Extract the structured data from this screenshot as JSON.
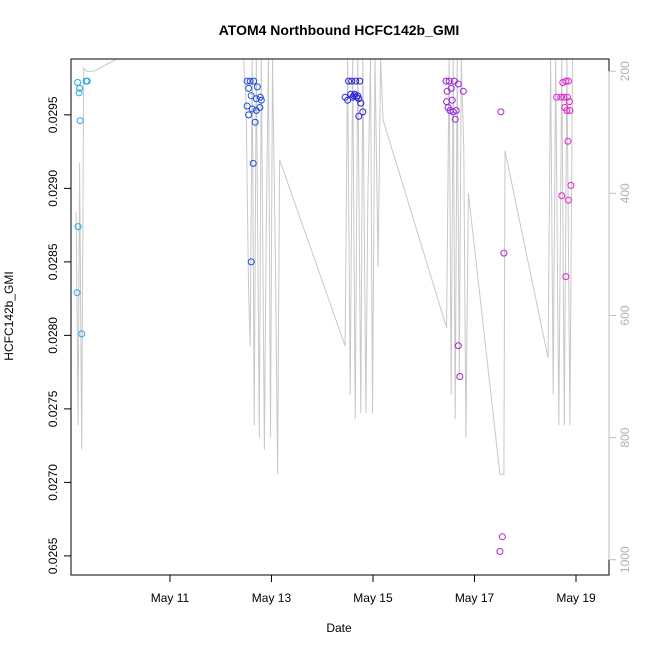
{
  "chart_data": {
    "type": "scatter",
    "title": "ATOM4 Northbound HCFC142b_GMI",
    "xlabel": "Date",
    "ylabel": "HCFC142b_GMI",
    "x_unit": "days since May 9",
    "xlim": [
      0.05,
      10.65
    ],
    "ylim": [
      0.02637,
      0.02988
    ],
    "y2lim": [
      1025,
      180
    ],
    "x_ticks": [
      {
        "value": 2,
        "label": "May 11"
      },
      {
        "value": 4,
        "label": "May 13"
      },
      {
        "value": 6,
        "label": "May 15"
      },
      {
        "value": 8,
        "label": "May 17"
      },
      {
        "value": 10,
        "label": "May 19"
      }
    ],
    "y_ticks": [
      {
        "value": 0.0265,
        "label": "0.0265"
      },
      {
        "value": 0.027,
        "label": "0.0270"
      },
      {
        "value": 0.0275,
        "label": "0.0275"
      },
      {
        "value": 0.028,
        "label": "0.0280"
      },
      {
        "value": 0.0285,
        "label": "0.0285"
      },
      {
        "value": 0.029,
        "label": "0.0290"
      },
      {
        "value": 0.0295,
        "label": "0.0295"
      }
    ],
    "y2_ticks": [
      {
        "value": 200,
        "label": "200"
      },
      {
        "value": 400,
        "label": "400"
      },
      {
        "value": 600,
        "label": "600"
      },
      {
        "value": 800,
        "label": "800"
      },
      {
        "value": 1000,
        "label": "1000"
      }
    ],
    "y2_color": "#bebebe",
    "pressure_line_color": "#c8c8c8",
    "pressure_profile": [
      [
        0.15,
        430
      ],
      [
        0.19,
        780
      ],
      [
        0.22,
        350
      ],
      [
        0.26,
        820
      ],
      [
        0.3,
        195
      ],
      [
        0.36,
        200
      ],
      [
        0.5,
        200
      ],
      [
        0.95,
        180
      ],
      [
        1.5,
        180
      ],
      [
        2.2,
        180
      ],
      [
        3.0,
        180
      ],
      [
        3.45,
        180
      ],
      [
        3.5,
        250
      ],
      [
        3.52,
        380
      ],
      [
        3.55,
        560
      ],
      [
        3.58,
        650
      ],
      [
        3.62,
        180
      ],
      [
        3.66,
        780
      ],
      [
        3.7,
        180
      ],
      [
        3.76,
        800
      ],
      [
        3.8,
        180
      ],
      [
        3.86,
        820
      ],
      [
        3.9,
        430
      ],
      [
        3.94,
        180
      ],
      [
        3.98,
        800
      ],
      [
        4.02,
        180
      ],
      [
        4.08,
        520
      ],
      [
        4.12,
        860
      ],
      [
        4.16,
        345
      ],
      [
        5.45,
        650
      ],
      [
        5.5,
        180
      ],
      [
        5.55,
        730
      ],
      [
        5.6,
        180
      ],
      [
        5.65,
        770
      ],
      [
        5.7,
        180
      ],
      [
        5.76,
        760
      ],
      [
        5.8,
        180
      ],
      [
        5.86,
        760
      ],
      [
        5.9,
        400
      ],
      [
        5.95,
        180
      ],
      [
        5.99,
        760
      ],
      [
        6.04,
        180
      ],
      [
        6.1,
        520
      ],
      [
        6.15,
        180
      ],
      [
        6.2,
        280
      ],
      [
        7.45,
        620
      ],
      [
        7.5,
        180
      ],
      [
        7.54,
        730
      ],
      [
        7.58,
        180
      ],
      [
        7.62,
        770
      ],
      [
        7.66,
        180
      ],
      [
        7.7,
        700
      ],
      [
        7.74,
        180
      ],
      [
        7.79,
        330
      ],
      [
        7.83,
        800
      ],
      [
        7.88,
        400
      ],
      [
        8.5,
        860
      ],
      [
        8.58,
        860
      ],
      [
        8.6,
        330
      ],
      [
        9.45,
        670
      ],
      [
        9.5,
        180
      ],
      [
        9.55,
        730
      ],
      [
        9.6,
        180
      ],
      [
        9.66,
        780
      ],
      [
        9.72,
        180
      ],
      [
        9.77,
        780
      ],
      [
        9.82,
        180
      ],
      [
        9.88,
        780
      ],
      [
        9.93,
        180
      ]
    ],
    "color_stops": [
      {
        "t": 0.2,
        "color": "#1eaaf0"
      },
      {
        "t": 3.6,
        "color": "#1e4ef0"
      },
      {
        "t": 5.7,
        "color": "#2a1ee6"
      },
      {
        "t": 7.5,
        "color": "#9b1ee6"
      },
      {
        "t": 9.9,
        "color": "#f01ed2"
      }
    ],
    "series": [
      {
        "name": "HCFC142b_GMI",
        "points": [
          [
            0.18,
            0.02972
          ],
          [
            0.21,
            0.02965
          ],
          [
            0.22,
            0.02968
          ],
          [
            0.23,
            0.02946
          ],
          [
            0.19,
            0.02874
          ],
          [
            0.17,
            0.02829
          ],
          [
            0.26,
            0.02801
          ],
          [
            0.35,
            0.02973
          ],
          [
            0.37,
            0.02973
          ],
          [
            3.52,
            0.02973
          ],
          [
            3.58,
            0.02973
          ],
          [
            3.65,
            0.02973
          ],
          [
            3.55,
            0.02968
          ],
          [
            3.6,
            0.02963
          ],
          [
            3.7,
            0.02961
          ],
          [
            3.72,
            0.02969
          ],
          [
            3.78,
            0.02962
          ],
          [
            3.8,
            0.0296
          ],
          [
            3.52,
            0.02956
          ],
          [
            3.62,
            0.02954
          ],
          [
            3.7,
            0.02953
          ],
          [
            3.77,
            0.02955
          ],
          [
            3.55,
            0.0295
          ],
          [
            3.68,
            0.02945
          ],
          [
            3.64,
            0.02917
          ],
          [
            3.6,
            0.0285
          ],
          [
            5.45,
            0.02962
          ],
          [
            5.5,
            0.0296
          ],
          [
            5.52,
            0.02973
          ],
          [
            5.58,
            0.02973
          ],
          [
            5.66,
            0.02973
          ],
          [
            5.74,
            0.02973
          ],
          [
            5.56,
            0.02964
          ],
          [
            5.62,
            0.02963
          ],
          [
            5.68,
            0.02962
          ],
          [
            5.72,
            0.02961
          ],
          [
            5.6,
            0.02962
          ],
          [
            5.64,
            0.02964
          ],
          [
            5.7,
            0.02963
          ],
          [
            5.76,
            0.02958
          ],
          [
            5.72,
            0.02949
          ],
          [
            5.8,
            0.02952
          ],
          [
            7.44,
            0.02973
          ],
          [
            7.5,
            0.02973
          ],
          [
            7.6,
            0.02973
          ],
          [
            7.68,
            0.02971
          ],
          [
            7.46,
            0.02966
          ],
          [
            7.54,
            0.02968
          ],
          [
            7.78,
            0.02966
          ],
          [
            7.45,
            0.02959
          ],
          [
            7.56,
            0.0296
          ],
          [
            7.48,
            0.02955
          ],
          [
            7.52,
            0.02953
          ],
          [
            7.58,
            0.02952
          ],
          [
            7.64,
            0.02953
          ],
          [
            7.62,
            0.02947
          ],
          [
            7.68,
            0.02793
          ],
          [
            7.71,
            0.02772
          ],
          [
            8.52,
            0.02952
          ],
          [
            8.58,
            0.02856
          ],
          [
            8.55,
            0.02663
          ],
          [
            8.5,
            0.02653
          ],
          [
            9.62,
            0.02962
          ],
          [
            9.7,
            0.02962
          ],
          [
            9.74,
            0.02972
          ],
          [
            9.8,
            0.02973
          ],
          [
            9.85,
            0.02973
          ],
          [
            9.76,
            0.02962
          ],
          [
            9.83,
            0.02962
          ],
          [
            9.87,
            0.02959
          ],
          [
            9.78,
            0.02955
          ],
          [
            9.82,
            0.02953
          ],
          [
            9.88,
            0.02953
          ],
          [
            9.84,
            0.02932
          ],
          [
            9.9,
            0.02902
          ],
          [
            9.72,
            0.02895
          ],
          [
            9.85,
            0.02892
          ],
          [
            9.8,
            0.0284
          ]
        ]
      }
    ]
  }
}
